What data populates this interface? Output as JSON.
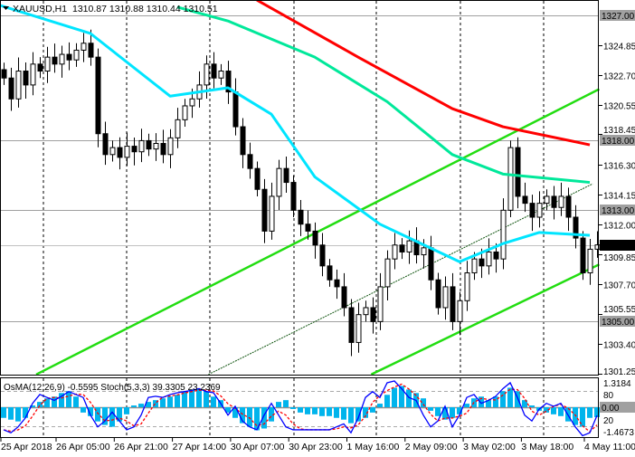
{
  "header": {
    "symbol": "XAUUSD,H1",
    "ohlc": "1310.87 1310.88 1310.44 1310.51"
  },
  "indicator_header": "OsMA(12,26,9) -0.5595  Stoch(5,3,3) 39.3305 23.2369",
  "colors": {
    "fast_ma": "#00e5ff",
    "mid_ma": "#00e89a",
    "slow_ma": "#ff0000",
    "channel": "#22dd11",
    "osma": "#00b4ec",
    "stoch_main": "#0000ff",
    "stoch_signal": "#ff0000",
    "level_box": "#a0a0a0",
    "price_box": "#000000"
  },
  "chart_data": {
    "type": "candlestick",
    "symbol": "XAUUSD",
    "timeframe": "H1",
    "ylim": [
      1301.25,
      1328.0
    ],
    "price_ticks": [
      "1324.85",
      "1322.70",
      "1320.55",
      "1318.45",
      "1316.30",
      "1314.15",
      "1312.00",
      "1309.85",
      "1307.70",
      "1305.55",
      "1303.40",
      "1301.25"
    ],
    "level_lines": [
      "1327.00",
      "1318.00",
      "1313.00",
      "1305.00"
    ],
    "current_price": "1310.51",
    "time_labels": [
      "25 Apr 2018",
      "26 Apr 05:00",
      "26 Apr 21:00",
      "27 Apr 14:00",
      "30 Apr 07:00",
      "30 Apr 23:00",
      "1 May 16:00",
      "2 May 09:00",
      "3 May 02:00",
      "3 May 18:00",
      "4 May 11:00"
    ],
    "close": [
      1322.5,
      1321,
      1323,
      1322,
      1323.5,
      1323,
      1324,
      1323.5,
      1324.2,
      1323.8,
      1324.5,
      1325,
      1324,
      1318.5,
      1317,
      1317.5,
      1316.8,
      1317.6,
      1317.2,
      1318,
      1317.4,
      1317.8,
      1317,
      1318.2,
      1319.5,
      1320.5,
      1321,
      1322,
      1323.5,
      1322.5,
      1323,
      1321.5,
      1319,
      1317,
      1316,
      1314.5,
      1311.5,
      1314,
      1316,
      1315,
      1313,
      1312,
      1311.5,
      1310.5,
      1309,
      1308,
      1307.5,
      1306,
      1303.5,
      1305.5,
      1306,
      1305,
      1307.5,
      1309.5,
      1310.5,
      1310,
      1310.8,
      1309.8,
      1310.3,
      1308,
      1306,
      1307.5,
      1305,
      1306.5,
      1308.5,
      1309.5,
      1309,
      1310,
      1309.5,
      1313,
      1317.5,
      1314,
      1313.5,
      1312.5,
      1313.5,
      1314,
      1313.2,
      1314,
      1312.5,
      1311,
      1308.5,
      1310.2,
      1310.51
    ],
    "moving_averages": [
      {
        "color_key": "fast_ma",
        "points": [
          [
            -1,
            1327.8
          ],
          [
            12,
            1325.7
          ],
          [
            23,
            1321.2
          ],
          [
            31,
            1321.8
          ],
          [
            37,
            1319.9
          ],
          [
            43,
            1315.4
          ],
          [
            52,
            1312.0
          ],
          [
            63,
            1309.3
          ],
          [
            69,
            1310.6
          ],
          [
            74,
            1311.4
          ],
          [
            81,
            1311.2
          ]
        ]
      },
      {
        "color_key": "mid_ma",
        "points": [
          [
            24,
            1327.6
          ],
          [
            31,
            1326.6
          ],
          [
            43,
            1324.0
          ],
          [
            53,
            1320.8
          ],
          [
            62,
            1317.0
          ],
          [
            69,
            1315.6
          ],
          [
            81,
            1315.0
          ]
        ]
      },
      {
        "color_key": "slow_ma",
        "points": [
          [
            35,
            1328.1
          ],
          [
            49,
            1324.0
          ],
          [
            62,
            1320.3
          ],
          [
            69,
            1319.0
          ],
          [
            81,
            1317.7
          ]
        ]
      }
    ],
    "trendlines": [
      {
        "style": "channel",
        "from": [
          4.5,
          1301.2
        ],
        "to": [
          82.3,
          1321.7
        ]
      },
      {
        "style": "thin",
        "from": [
          28.3,
          1301.2
        ],
        "to": [
          81.4,
          1314.9
        ]
      },
      {
        "style": "channel",
        "from": [
          50.8,
          1301.2
        ],
        "to": [
          82.3,
          1309.1
        ]
      }
    ],
    "indicator": {
      "osma_ticks": [
        "1.3184",
        "0.00",
        "-1.4673"
      ],
      "stoch_levels": [
        "80",
        "20"
      ],
      "osma": [
        -0.6,
        -0.7,
        -0.8,
        -0.6,
        0.1,
        0.3,
        0.5,
        0.6,
        0.8,
        0.9,
        0.6,
        -0.3,
        -0.5,
        -0.8,
        -1.0,
        -1.1,
        -0.8,
        -0.4,
        0.1,
        0.2,
        0.3,
        0.4,
        0.5,
        0.6,
        0.7,
        0.9,
        1.0,
        1.0,
        0.9,
        0.6,
        0.4,
        -0.3,
        -0.6,
        -0.9,
        -1.1,
        -1.3,
        -1.2,
        -0.8,
        0.3,
        0.4,
        -0.1,
        -0.3,
        -0.4,
        -0.4,
        -0.5,
        -0.5,
        -0.6,
        -0.7,
        -0.9,
        -0.8,
        -0.6,
        -0.3,
        0.2,
        0.7,
        1.1,
        1.2,
        1.0,
        0.8,
        0.5,
        -0.2,
        -0.5,
        -0.7,
        -0.6,
        -0.4,
        0.2,
        0.5,
        0.6,
        0.4,
        0.6,
        0.9,
        1.1,
        0.9,
        0.4,
        0.1,
        -0.2,
        -0.3,
        -0.4,
        -0.5,
        -0.8,
        -1.0,
        -1.1,
        -0.6,
        -0.5595
      ],
      "stoch_main": [
        15,
        10,
        20,
        35,
        60,
        75,
        70,
        65,
        72,
        80,
        75,
        70,
        40,
        20,
        30,
        45,
        30,
        15,
        20,
        40,
        70,
        72,
        70,
        75,
        78,
        80,
        82,
        85,
        80,
        78,
        60,
        40,
        55,
        30,
        20,
        15,
        40,
        60,
        40,
        20,
        15,
        15,
        15,
        15,
        15,
        15,
        20,
        25,
        10,
        35,
        70,
        80,
        70,
        95,
        98,
        85,
        70,
        65,
        40,
        20,
        30,
        55,
        20,
        40,
        70,
        75,
        60,
        65,
        72,
        85,
        95,
        70,
        40,
        30,
        50,
        60,
        55,
        60,
        40,
        20,
        5,
        10,
        39.33
      ],
      "stoch_signal_last": 23.24
    }
  }
}
